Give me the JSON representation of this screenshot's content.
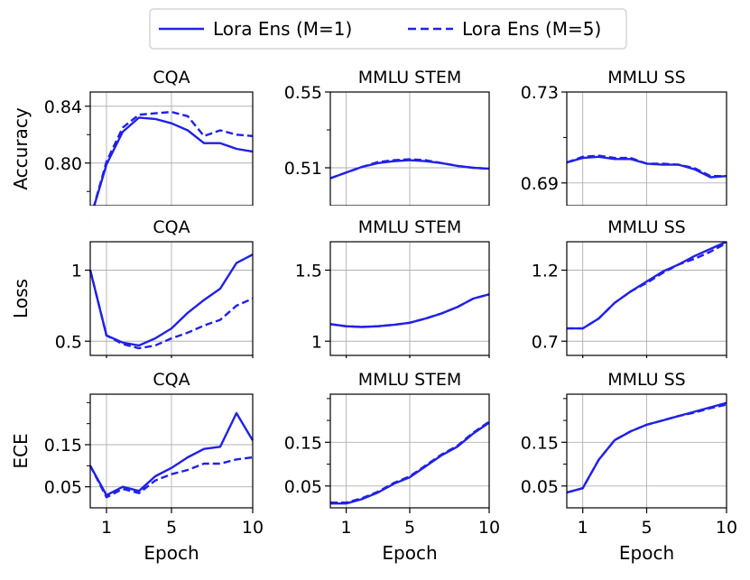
{
  "legend": {
    "placement": "top-center",
    "entries": [
      {
        "label": "Lora Ens (M=1)",
        "style": "solid"
      },
      {
        "label": "Lora Ens (M=5)",
        "style": "dashed"
      }
    ]
  },
  "colors": {
    "series": "#2121e6",
    "grid": "#b0b0b0",
    "axis": "#000000"
  },
  "x_axis": {
    "label": "Epoch",
    "ticks": [
      1,
      5,
      10
    ],
    "range": [
      0,
      10
    ]
  },
  "row_labels": [
    "Accuracy",
    "Loss",
    "ECE"
  ],
  "col_titles": [
    "CQA",
    "MMLU STEM",
    "MMLU SS"
  ],
  "chart_data": [
    {
      "type": "line",
      "title": "CQA",
      "ylabel": "Accuracy",
      "xlabel": "",
      "ylim": [
        0.77,
        0.85
      ],
      "yticks": [
        0.8,
        0.84
      ],
      "ytick_labels": [
        "0.80",
        "0.84"
      ],
      "minor_yticks": [
        0.78,
        0.82
      ],
      "x": [
        0,
        1,
        2,
        3,
        4,
        5,
        6,
        7,
        8,
        9,
        10
      ],
      "series": [
        {
          "name": "Lora Ens (M=1)",
          "style": "solid",
          "values": [
            0.753,
            0.799,
            0.822,
            0.832,
            0.831,
            0.828,
            0.823,
            0.814,
            0.814,
            0.81,
            0.808
          ]
        },
        {
          "name": "Lora Ens (M=5)",
          "style": "dashed",
          "values": [
            0.753,
            0.801,
            0.825,
            0.834,
            0.835,
            0.836,
            0.833,
            0.819,
            0.823,
            0.82,
            0.819
          ]
        }
      ]
    },
    {
      "type": "line",
      "title": "MMLU STEM",
      "ylabel": "",
      "xlabel": "",
      "ylim": [
        0.49,
        0.55
      ],
      "yticks": [
        0.51,
        0.55
      ],
      "ytick_labels": [
        "0.51",
        "0.55"
      ],
      "minor_yticks": [
        0.53
      ],
      "x": [
        0,
        1,
        2,
        3,
        4,
        5,
        6,
        7,
        8,
        9,
        10
      ],
      "series": [
        {
          "name": "Lora Ens (M=1)",
          "style": "solid",
          "values": [
            0.5045,
            0.5075,
            0.5105,
            0.5125,
            0.5135,
            0.514,
            0.5135,
            0.5125,
            0.511,
            0.51,
            0.5095
          ]
        },
        {
          "name": "Lora Ens (M=5)",
          "style": "dashed",
          "values": [
            0.5045,
            0.5075,
            0.5105,
            0.513,
            0.514,
            0.5145,
            0.514,
            0.5125,
            0.511,
            0.51,
            0.5095
          ]
        }
      ]
    },
    {
      "type": "line",
      "title": "MMLU SS",
      "ylabel": "",
      "xlabel": "",
      "ylim": [
        0.68,
        0.73
      ],
      "yticks": [
        0.69,
        0.73
      ],
      "ytick_labels": [
        "0.69",
        "0.73"
      ],
      "minor_yticks": [
        0.71
      ],
      "x": [
        0,
        1,
        2,
        3,
        4,
        5,
        6,
        7,
        8,
        9,
        10
      ],
      "series": [
        {
          "name": "Lora Ens (M=1)",
          "style": "solid",
          "values": [
            0.699,
            0.701,
            0.7015,
            0.7005,
            0.7005,
            0.6985,
            0.698,
            0.698,
            0.696,
            0.6925,
            0.693
          ]
        },
        {
          "name": "Lora Ens (M=5)",
          "style": "dashed",
          "values": [
            0.699,
            0.7015,
            0.702,
            0.701,
            0.701,
            0.6985,
            0.6985,
            0.698,
            0.6965,
            0.693,
            0.693
          ]
        }
      ]
    },
    {
      "type": "line",
      "title": "CQA",
      "ylabel": "Loss",
      "xlabel": "",
      "ylim": [
        0.4,
        1.2
      ],
      "yticks": [
        0.5,
        1
      ],
      "ytick_labels": [
        "0.5",
        "1"
      ],
      "minor_yticks": [],
      "x": [
        0,
        1,
        2,
        3,
        4,
        5,
        6,
        7,
        8,
        9,
        10
      ],
      "series": [
        {
          "name": "Lora Ens (M=1)",
          "style": "solid",
          "values": [
            1.0,
            0.54,
            0.49,
            0.47,
            0.52,
            0.59,
            0.7,
            0.79,
            0.87,
            1.05,
            1.11
          ]
        },
        {
          "name": "Lora Ens (M=5)",
          "style": "dashed",
          "values": [
            1.0,
            0.54,
            0.48,
            0.45,
            0.47,
            0.52,
            0.56,
            0.61,
            0.65,
            0.75,
            0.8
          ]
        }
      ]
    },
    {
      "type": "line",
      "title": "MMLU STEM",
      "ylabel": "",
      "xlabel": "",
      "ylim": [
        0.9,
        1.7
      ],
      "yticks": [
        1,
        1.5
      ],
      "ytick_labels": [
        "1",
        "1.5"
      ],
      "minor_yticks": [],
      "x": [
        0,
        1,
        2,
        3,
        4,
        5,
        6,
        7,
        8,
        9,
        10
      ],
      "series": [
        {
          "name": "Lora Ens (M=1)",
          "style": "solid",
          "values": [
            1.12,
            1.105,
            1.1,
            1.105,
            1.115,
            1.13,
            1.16,
            1.195,
            1.24,
            1.3,
            1.33
          ]
        },
        {
          "name": "Lora Ens (M=5)",
          "style": "dashed",
          "values": [
            1.12,
            1.105,
            1.1,
            1.105,
            1.115,
            1.13,
            1.16,
            1.195,
            1.24,
            1.3,
            1.33
          ]
        }
      ]
    },
    {
      "type": "line",
      "title": "MMLU SS",
      "ylabel": "",
      "xlabel": "",
      "ylim": [
        0.6,
        1.4
      ],
      "yticks": [
        0.7,
        1.2
      ],
      "ytick_labels": [
        "0.7",
        "1.2"
      ],
      "minor_yticks": [],
      "x": [
        0,
        1,
        2,
        3,
        4,
        5,
        6,
        7,
        8,
        9,
        10
      ],
      "series": [
        {
          "name": "Lora Ens (M=1)",
          "style": "solid",
          "values": [
            0.79,
            0.79,
            0.86,
            0.97,
            1.05,
            1.12,
            1.19,
            1.24,
            1.3,
            1.35,
            1.4
          ]
        },
        {
          "name": "Lora Ens (M=5)",
          "style": "dashed",
          "values": [
            0.79,
            0.79,
            0.86,
            0.97,
            1.05,
            1.11,
            1.18,
            1.24,
            1.28,
            1.33,
            1.39
          ]
        }
      ]
    },
    {
      "type": "line",
      "title": "CQA",
      "ylabel": "ECE",
      "xlabel": "Epoch",
      "ylim": [
        0.0,
        0.27
      ],
      "yticks": [
        0.05,
        0.15
      ],
      "ytick_labels": [
        "0.05",
        "0.15"
      ],
      "minor_yticks": [
        0.1,
        0.2,
        0.25
      ],
      "x": [
        0,
        1,
        2,
        3,
        4,
        5,
        6,
        7,
        8,
        9,
        10
      ],
      "series": [
        {
          "name": "Lora Ens (M=1)",
          "style": "solid",
          "values": [
            0.1,
            0.03,
            0.05,
            0.04,
            0.075,
            0.095,
            0.12,
            0.14,
            0.145,
            0.225,
            0.16
          ]
        },
        {
          "name": "Lora Ens (M=5)",
          "style": "dashed",
          "values": [
            0.1,
            0.025,
            0.045,
            0.035,
            0.065,
            0.08,
            0.09,
            0.105,
            0.105,
            0.115,
            0.12
          ]
        }
      ]
    },
    {
      "type": "line",
      "title": "MMLU STEM",
      "ylabel": "",
      "xlabel": "Epoch",
      "ylim": [
        0.0,
        0.26
      ],
      "yticks": [
        0.05,
        0.15
      ],
      "ytick_labels": [
        "0.05",
        "0.15"
      ],
      "minor_yticks": [
        0.1,
        0.2,
        0.25
      ],
      "x": [
        0,
        1,
        2,
        3,
        4,
        5,
        6,
        7,
        8,
        9,
        10
      ],
      "series": [
        {
          "name": "Lora Ens (M=1)",
          "style": "solid",
          "values": [
            0.01,
            0.01,
            0.02,
            0.035,
            0.055,
            0.07,
            0.095,
            0.12,
            0.14,
            0.17,
            0.195
          ]
        },
        {
          "name": "Lora Ens (M=5)",
          "style": "dashed",
          "values": [
            0.012,
            0.012,
            0.022,
            0.037,
            0.057,
            0.072,
            0.097,
            0.122,
            0.142,
            0.172,
            0.197
          ]
        }
      ]
    },
    {
      "type": "line",
      "title": "MMLU SS",
      "ylabel": "",
      "xlabel": "Epoch",
      "ylim": [
        0.0,
        0.26
      ],
      "yticks": [
        0.05,
        0.15
      ],
      "ytick_labels": [
        "0.05",
        "0.15"
      ],
      "minor_yticks": [
        0.1,
        0.2,
        0.25
      ],
      "x": [
        0,
        1,
        2,
        3,
        4,
        5,
        6,
        7,
        8,
        9,
        10
      ],
      "series": [
        {
          "name": "Lora Ens (M=1)",
          "style": "solid",
          "values": [
            0.035,
            0.045,
            0.11,
            0.155,
            0.175,
            0.19,
            0.2,
            0.21,
            0.22,
            0.23,
            0.24
          ]
        },
        {
          "name": "Lora Ens (M=5)",
          "style": "dashed",
          "values": [
            0.035,
            0.045,
            0.11,
            0.155,
            0.175,
            0.19,
            0.2,
            0.21,
            0.218,
            0.228,
            0.236
          ]
        }
      ]
    }
  ]
}
